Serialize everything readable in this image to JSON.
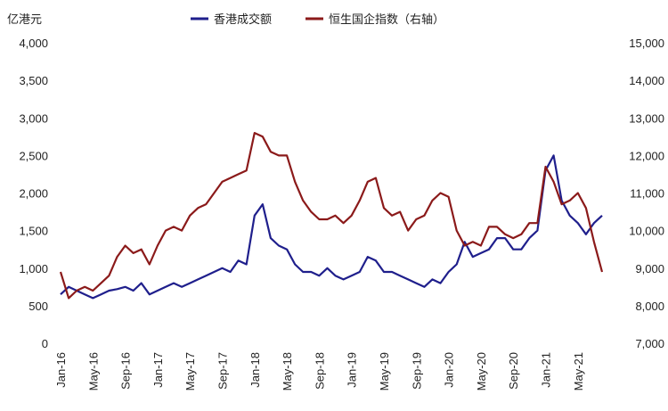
{
  "chart_data": {
    "type": "line",
    "title": "",
    "left_axis": {
      "unit_label": "亿港元",
      "ylim": [
        0,
        4000
      ],
      "ticks": [
        0,
        500,
        1000,
        1500,
        2000,
        2500,
        3000,
        3500,
        4000
      ],
      "tick_labels": [
        "0",
        "500",
        "1,000",
        "1,500",
        "2,000",
        "2,500",
        "3,000",
        "3,500",
        "4,000"
      ]
    },
    "right_axis": {
      "ylim": [
        7000,
        15000
      ],
      "ticks": [
        7000,
        8000,
        9000,
        10000,
        11000,
        12000,
        13000,
        14000,
        15000
      ],
      "tick_labels": [
        "7,000",
        "8,000",
        "9,000",
        "10,000",
        "11,000",
        "12,000",
        "13,000",
        "14,000",
        "15,000"
      ]
    },
    "x_axis": {
      "range": [
        "2016-01",
        "2021-08"
      ],
      "tick_dates": [
        "2016-01",
        "2016-05",
        "2016-09",
        "2017-01",
        "2017-05",
        "2017-09",
        "2018-01",
        "2018-05",
        "2018-09",
        "2019-01",
        "2019-05",
        "2019-09",
        "2020-01",
        "2020-05",
        "2020-09",
        "2021-01",
        "2021-05"
      ],
      "tick_labels": [
        "Jan-16",
        "May-16",
        "Sep-16",
        "Jan-17",
        "May-17",
        "Sep-17",
        "Jan-18",
        "May-18",
        "Sep-18",
        "Jan-19",
        "May-19",
        "Sep-19",
        "Jan-20",
        "May-20",
        "Sep-20",
        "Jan-21",
        "May-21"
      ]
    },
    "grid": false,
    "legend_position": "top",
    "series": [
      {
        "name": "香港成交额",
        "axis": "left",
        "color": "#1f1f8c",
        "x": [
          "2016-01",
          "2016-02",
          "2016-03",
          "2016-04",
          "2016-05",
          "2016-06",
          "2016-07",
          "2016-08",
          "2016-09",
          "2016-10",
          "2016-11",
          "2016-12",
          "2017-01",
          "2017-02",
          "2017-03",
          "2017-04",
          "2017-05",
          "2017-06",
          "2017-07",
          "2017-08",
          "2017-09",
          "2017-10",
          "2017-11",
          "2017-12",
          "2018-01",
          "2018-02",
          "2018-03",
          "2018-04",
          "2018-05",
          "2018-06",
          "2018-07",
          "2018-08",
          "2018-09",
          "2018-10",
          "2018-11",
          "2018-12",
          "2019-01",
          "2019-02",
          "2019-03",
          "2019-04",
          "2019-05",
          "2019-06",
          "2019-07",
          "2019-08",
          "2019-09",
          "2019-10",
          "2019-11",
          "2019-12",
          "2020-01",
          "2020-02",
          "2020-03",
          "2020-04",
          "2020-05",
          "2020-06",
          "2020-07",
          "2020-08",
          "2020-09",
          "2020-10",
          "2020-11",
          "2020-12",
          "2021-01",
          "2021-02",
          "2021-03",
          "2021-04",
          "2021-05",
          "2021-06",
          "2021-07",
          "2021-08"
        ],
        "values": [
          650,
          750,
          700,
          650,
          600,
          650,
          700,
          720,
          750,
          700,
          800,
          650,
          700,
          750,
          800,
          750,
          800,
          850,
          900,
          950,
          1000,
          950,
          1100,
          1050,
          1700,
          1850,
          1400,
          1300,
          1250,
          1050,
          950,
          950,
          900,
          1000,
          900,
          850,
          900,
          950,
          1150,
          1100,
          950,
          950,
          900,
          850,
          800,
          750,
          850,
          800,
          950,
          1050,
          1350,
          1150,
          1200,
          1250,
          1400,
          1400,
          1250,
          1250,
          1400,
          1500,
          2300,
          2500,
          1900,
          1700,
          1600,
          1450,
          1600,
          1700
        ]
      },
      {
        "name": "恒生国企指数（右轴）",
        "axis": "right",
        "color": "#8b1a1a",
        "x": [
          "2016-01",
          "2016-02",
          "2016-03",
          "2016-04",
          "2016-05",
          "2016-06",
          "2016-07",
          "2016-08",
          "2016-09",
          "2016-10",
          "2016-11",
          "2016-12",
          "2017-01",
          "2017-02",
          "2017-03",
          "2017-04",
          "2017-05",
          "2017-06",
          "2017-07",
          "2017-08",
          "2017-09",
          "2017-10",
          "2017-11",
          "2017-12",
          "2018-01",
          "2018-02",
          "2018-03",
          "2018-04",
          "2018-05",
          "2018-06",
          "2018-07",
          "2018-08",
          "2018-09",
          "2018-10",
          "2018-11",
          "2018-12",
          "2019-01",
          "2019-02",
          "2019-03",
          "2019-04",
          "2019-05",
          "2019-06",
          "2019-07",
          "2019-08",
          "2019-09",
          "2019-10",
          "2019-11",
          "2019-12",
          "2020-01",
          "2020-02",
          "2020-03",
          "2020-04",
          "2020-05",
          "2020-06",
          "2020-07",
          "2020-08",
          "2020-09",
          "2020-10",
          "2020-11",
          "2020-12",
          "2021-01",
          "2021-02",
          "2021-03",
          "2021-04",
          "2021-05",
          "2021-06",
          "2021-07",
          "2021-08"
        ],
        "values": [
          8900,
          8200,
          8400,
          8500,
          8400,
          8600,
          8800,
          9300,
          9600,
          9400,
          9500,
          9100,
          9600,
          10000,
          10100,
          10000,
          10400,
          10600,
          10700,
          11000,
          11300,
          11400,
          11500,
          11600,
          12600,
          12500,
          12100,
          12000,
          12000,
          11300,
          10800,
          10500,
          10300,
          10300,
          10400,
          10200,
          10400,
          10800,
          11300,
          11400,
          10600,
          10400,
          10500,
          10000,
          10300,
          10400,
          10800,
          11000,
          10900,
          10000,
          9600,
          9700,
          9600,
          10100,
          10100,
          9900,
          9800,
          9900,
          10200,
          10200,
          11700,
          11300,
          10700,
          10800,
          11000,
          10600,
          9700,
          8900
        ]
      }
    ]
  }
}
